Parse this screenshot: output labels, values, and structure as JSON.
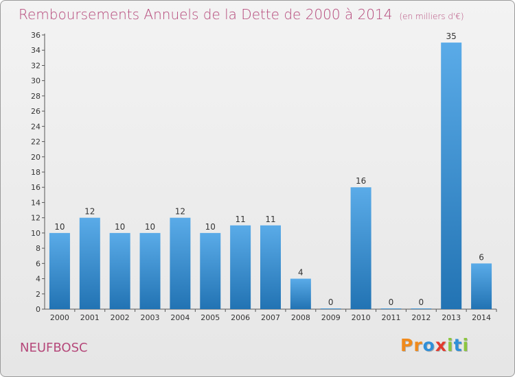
{
  "header": {
    "title": "Remboursements Annuels de la Dette de 2000 à 2014",
    "subtitle": "(en milliers d'€)"
  },
  "footer": {
    "town": "NEUFBOSC",
    "logo": [
      "P",
      "r",
      "o",
      "x",
      "i",
      "t",
      "i"
    ]
  },
  "colors": {
    "title": "#b5487a",
    "bar_top": "#5aabe8",
    "bar_bottom": "#2273b3",
    "logo": [
      "#f08a1c",
      "#f08a1c",
      "#2f8fd8",
      "#e23a2e",
      "#8cc63f",
      "#2f8fd8",
      "#8cc63f"
    ]
  },
  "chart_data": {
    "type": "bar",
    "title": "Remboursements Annuels de la Dette de 2000 à 2014",
    "subtitle": "(en milliers d'€)",
    "xlabel": "",
    "ylabel": "",
    "categories": [
      "2000",
      "2001",
      "2002",
      "2003",
      "2004",
      "2005",
      "2006",
      "2007",
      "2008",
      "2009",
      "2010",
      "2011",
      "2012",
      "2013",
      "2014"
    ],
    "values": [
      10,
      12,
      10,
      10,
      12,
      10,
      11,
      11,
      4,
      0,
      16,
      0,
      0,
      35,
      6
    ],
    "ylim": [
      0,
      36
    ],
    "yticks": [
      0,
      2,
      4,
      6,
      8,
      10,
      12,
      14,
      16,
      18,
      20,
      22,
      24,
      26,
      28,
      30,
      32,
      34,
      36
    ],
    "grid": false,
    "legend": "none"
  }
}
